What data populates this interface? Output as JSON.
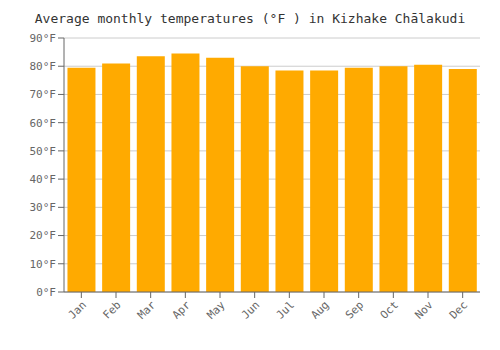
{
  "chart_data": {
    "type": "bar",
    "title": "Average monthly temperatures (°F ) in Kizhake Chālakudi",
    "categories": [
      "Jan",
      "Feb",
      "Mar",
      "Apr",
      "May",
      "Jun",
      "Jul",
      "Aug",
      "Sep",
      "Oct",
      "Nov",
      "Dec"
    ],
    "values": [
      79.5,
      81.0,
      83.5,
      84.5,
      83.0,
      80.0,
      78.5,
      78.5,
      79.5,
      80.0,
      80.5,
      79.0
    ],
    "color": "#FFAA00",
    "ylim": [
      0,
      90
    ],
    "yticks": [
      {
        "value": 0,
        "label": "0°F"
      },
      {
        "value": 10,
        "label": "10°F"
      },
      {
        "value": 20,
        "label": "20°F"
      },
      {
        "value": 30,
        "label": "30°F"
      },
      {
        "value": 40,
        "label": "40°F"
      },
      {
        "value": 50,
        "label": "50°F"
      },
      {
        "value": 60,
        "label": "60°F"
      },
      {
        "value": 70,
        "label": "70°F"
      },
      {
        "value": 80,
        "label": "80°F"
      },
      {
        "value": 90,
        "label": "90°F"
      }
    ],
    "grid": true
  }
}
